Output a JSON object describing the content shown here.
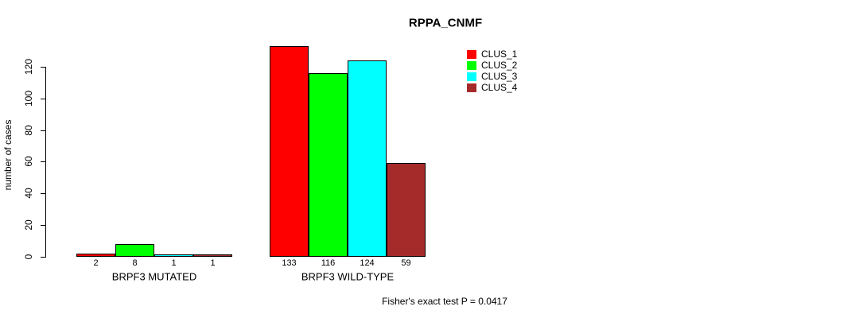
{
  "title": "RPPA_CNMF",
  "chart_data": {
    "type": "bar",
    "title": "RPPA_CNMF",
    "xlabel": "",
    "ylabel": "number of cases",
    "categories": [
      "BRPF3 MUTATED",
      "BRPF3 WILD-TYPE"
    ],
    "series": [
      {
        "name": "CLUS_1",
        "color": "#ff0000",
        "values": [
          2,
          133
        ]
      },
      {
        "name": "CLUS_2",
        "color": "#00ff00",
        "values": [
          8,
          116
        ]
      },
      {
        "name": "CLUS_3",
        "color": "#00ffff",
        "values": [
          1,
          124
        ]
      },
      {
        "name": "CLUS_4",
        "color": "#a52a2a",
        "values": [
          1,
          59
        ]
      }
    ],
    "yticks": [
      0,
      20,
      40,
      60,
      80,
      100,
      120
    ],
    "ylim": [
      0,
      133
    ],
    "grid": false,
    "legend_position": "top-right",
    "bar_value_labels_shown": true,
    "annotation": "Fisher's exact test P = 0.0417"
  }
}
